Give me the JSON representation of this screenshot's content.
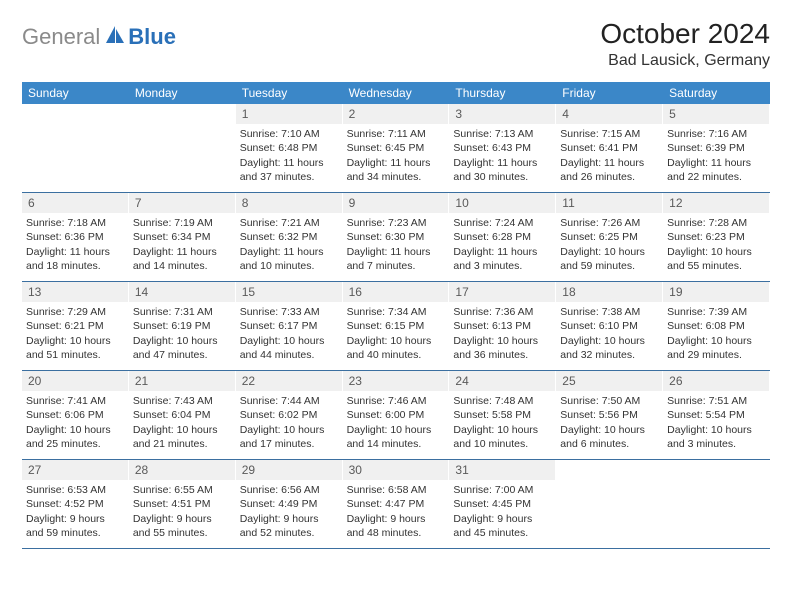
{
  "logo": {
    "gray": "General",
    "blue": "Blue"
  },
  "title": "October 2024",
  "location": "Bad Lausick, Germany",
  "colors": {
    "header_bg": "#3b87c8",
    "header_text": "#ffffff",
    "row_border": "#3b6fa0",
    "daynum_bg": "#f0f0f0",
    "body_text": "#333333",
    "logo_gray": "#8a8a8a",
    "logo_blue": "#2a70b8"
  },
  "weekdays": [
    "Sunday",
    "Monday",
    "Tuesday",
    "Wednesday",
    "Thursday",
    "Friday",
    "Saturday"
  ],
  "weeks": [
    [
      {
        "empty": true
      },
      {
        "empty": true
      },
      {
        "d": "1",
        "sr": "Sunrise: 7:10 AM",
        "ss": "Sunset: 6:48 PM",
        "dl": "Daylight: 11 hours and 37 minutes."
      },
      {
        "d": "2",
        "sr": "Sunrise: 7:11 AM",
        "ss": "Sunset: 6:45 PM",
        "dl": "Daylight: 11 hours and 34 minutes."
      },
      {
        "d": "3",
        "sr": "Sunrise: 7:13 AM",
        "ss": "Sunset: 6:43 PM",
        "dl": "Daylight: 11 hours and 30 minutes."
      },
      {
        "d": "4",
        "sr": "Sunrise: 7:15 AM",
        "ss": "Sunset: 6:41 PM",
        "dl": "Daylight: 11 hours and 26 minutes."
      },
      {
        "d": "5",
        "sr": "Sunrise: 7:16 AM",
        "ss": "Sunset: 6:39 PM",
        "dl": "Daylight: 11 hours and 22 minutes."
      }
    ],
    [
      {
        "d": "6",
        "sr": "Sunrise: 7:18 AM",
        "ss": "Sunset: 6:36 PM",
        "dl": "Daylight: 11 hours and 18 minutes."
      },
      {
        "d": "7",
        "sr": "Sunrise: 7:19 AM",
        "ss": "Sunset: 6:34 PM",
        "dl": "Daylight: 11 hours and 14 minutes."
      },
      {
        "d": "8",
        "sr": "Sunrise: 7:21 AM",
        "ss": "Sunset: 6:32 PM",
        "dl": "Daylight: 11 hours and 10 minutes."
      },
      {
        "d": "9",
        "sr": "Sunrise: 7:23 AM",
        "ss": "Sunset: 6:30 PM",
        "dl": "Daylight: 11 hours and 7 minutes."
      },
      {
        "d": "10",
        "sr": "Sunrise: 7:24 AM",
        "ss": "Sunset: 6:28 PM",
        "dl": "Daylight: 11 hours and 3 minutes."
      },
      {
        "d": "11",
        "sr": "Sunrise: 7:26 AM",
        "ss": "Sunset: 6:25 PM",
        "dl": "Daylight: 10 hours and 59 minutes."
      },
      {
        "d": "12",
        "sr": "Sunrise: 7:28 AM",
        "ss": "Sunset: 6:23 PM",
        "dl": "Daylight: 10 hours and 55 minutes."
      }
    ],
    [
      {
        "d": "13",
        "sr": "Sunrise: 7:29 AM",
        "ss": "Sunset: 6:21 PM",
        "dl": "Daylight: 10 hours and 51 minutes."
      },
      {
        "d": "14",
        "sr": "Sunrise: 7:31 AM",
        "ss": "Sunset: 6:19 PM",
        "dl": "Daylight: 10 hours and 47 minutes."
      },
      {
        "d": "15",
        "sr": "Sunrise: 7:33 AM",
        "ss": "Sunset: 6:17 PM",
        "dl": "Daylight: 10 hours and 44 minutes."
      },
      {
        "d": "16",
        "sr": "Sunrise: 7:34 AM",
        "ss": "Sunset: 6:15 PM",
        "dl": "Daylight: 10 hours and 40 minutes."
      },
      {
        "d": "17",
        "sr": "Sunrise: 7:36 AM",
        "ss": "Sunset: 6:13 PM",
        "dl": "Daylight: 10 hours and 36 minutes."
      },
      {
        "d": "18",
        "sr": "Sunrise: 7:38 AM",
        "ss": "Sunset: 6:10 PM",
        "dl": "Daylight: 10 hours and 32 minutes."
      },
      {
        "d": "19",
        "sr": "Sunrise: 7:39 AM",
        "ss": "Sunset: 6:08 PM",
        "dl": "Daylight: 10 hours and 29 minutes."
      }
    ],
    [
      {
        "d": "20",
        "sr": "Sunrise: 7:41 AM",
        "ss": "Sunset: 6:06 PM",
        "dl": "Daylight: 10 hours and 25 minutes."
      },
      {
        "d": "21",
        "sr": "Sunrise: 7:43 AM",
        "ss": "Sunset: 6:04 PM",
        "dl": "Daylight: 10 hours and 21 minutes."
      },
      {
        "d": "22",
        "sr": "Sunrise: 7:44 AM",
        "ss": "Sunset: 6:02 PM",
        "dl": "Daylight: 10 hours and 17 minutes."
      },
      {
        "d": "23",
        "sr": "Sunrise: 7:46 AM",
        "ss": "Sunset: 6:00 PM",
        "dl": "Daylight: 10 hours and 14 minutes."
      },
      {
        "d": "24",
        "sr": "Sunrise: 7:48 AM",
        "ss": "Sunset: 5:58 PM",
        "dl": "Daylight: 10 hours and 10 minutes."
      },
      {
        "d": "25",
        "sr": "Sunrise: 7:50 AM",
        "ss": "Sunset: 5:56 PM",
        "dl": "Daylight: 10 hours and 6 minutes."
      },
      {
        "d": "26",
        "sr": "Sunrise: 7:51 AM",
        "ss": "Sunset: 5:54 PM",
        "dl": "Daylight: 10 hours and 3 minutes."
      }
    ],
    [
      {
        "d": "27",
        "sr": "Sunrise: 6:53 AM",
        "ss": "Sunset: 4:52 PM",
        "dl": "Daylight: 9 hours and 59 minutes."
      },
      {
        "d": "28",
        "sr": "Sunrise: 6:55 AM",
        "ss": "Sunset: 4:51 PM",
        "dl": "Daylight: 9 hours and 55 minutes."
      },
      {
        "d": "29",
        "sr": "Sunrise: 6:56 AM",
        "ss": "Sunset: 4:49 PM",
        "dl": "Daylight: 9 hours and 52 minutes."
      },
      {
        "d": "30",
        "sr": "Sunrise: 6:58 AM",
        "ss": "Sunset: 4:47 PM",
        "dl": "Daylight: 9 hours and 48 minutes."
      },
      {
        "d": "31",
        "sr": "Sunrise: 7:00 AM",
        "ss": "Sunset: 4:45 PM",
        "dl": "Daylight: 9 hours and 45 minutes."
      },
      {
        "empty": true
      },
      {
        "empty": true
      }
    ]
  ]
}
